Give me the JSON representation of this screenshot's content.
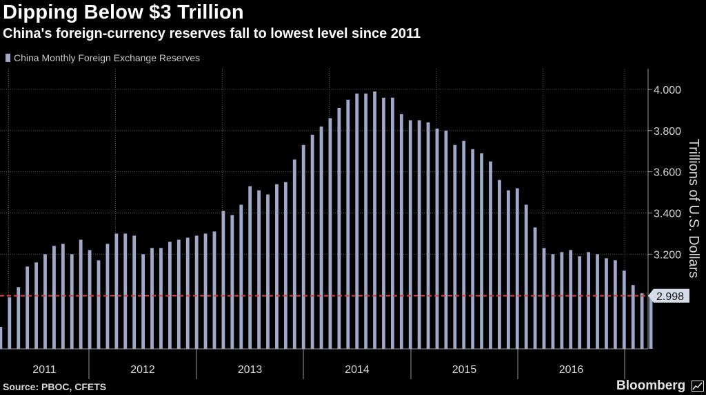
{
  "header": {
    "title": "Dipping Below $3 Trillion",
    "subtitle": "China's foreign-currency reserves fall to lowest level since 2011"
  },
  "footer": {
    "source": "Source: PBOC, CFETS",
    "brand": "Bloomberg"
  },
  "colors": {
    "bar": "#a0aac8",
    "reference_line": "#e8392f",
    "grid": "#5a5a5a",
    "axis_text": "#d8d8d8",
    "background": "#000000"
  },
  "chart_data": {
    "type": "bar",
    "legend": [
      "China Monthly Foreign Exchange Reserves"
    ],
    "legend_position": "top-left",
    "ylabel": "Trillions of U.S. Dollars",
    "ylim": [
      2.74,
      4.1
    ],
    "yticks": [
      "4.000",
      "3.800",
      "3.600",
      "3.400",
      "3.200"
    ],
    "ytick_values": [
      4.0,
      3.8,
      3.6,
      3.4,
      3.2
    ],
    "grid": true,
    "x_groups": [
      "2011",
      "2012",
      "2013",
      "2014",
      "2015",
      "2016"
    ],
    "categories": [
      "2010-12",
      "2011-01",
      "2011-02",
      "2011-03",
      "2011-04",
      "2011-05",
      "2011-06",
      "2011-07",
      "2011-08",
      "2011-09",
      "2011-10",
      "2011-11",
      "2011-12",
      "2012-01",
      "2012-02",
      "2012-03",
      "2012-04",
      "2012-05",
      "2012-06",
      "2012-07",
      "2012-08",
      "2012-09",
      "2012-10",
      "2012-11",
      "2012-12",
      "2013-01",
      "2013-02",
      "2013-03",
      "2013-04",
      "2013-05",
      "2013-06",
      "2013-07",
      "2013-08",
      "2013-09",
      "2013-10",
      "2013-11",
      "2013-12",
      "2014-01",
      "2014-02",
      "2014-03",
      "2014-04",
      "2014-05",
      "2014-06",
      "2014-07",
      "2014-08",
      "2014-09",
      "2014-10",
      "2014-11",
      "2014-12",
      "2015-01",
      "2015-02",
      "2015-03",
      "2015-04",
      "2015-05",
      "2015-06",
      "2015-07",
      "2015-08",
      "2015-09",
      "2015-10",
      "2015-11",
      "2015-12",
      "2016-01",
      "2016-02",
      "2016-03",
      "2016-04",
      "2016-05",
      "2016-06",
      "2016-07",
      "2016-08",
      "2016-09",
      "2016-10",
      "2016-11",
      "2016-12",
      "2017-01"
    ],
    "series": [
      {
        "name": "China Monthly Foreign Exchange Reserves",
        "values": [
          2.847,
          2.99,
          3.04,
          3.14,
          3.16,
          3.2,
          3.24,
          3.25,
          3.2,
          3.27,
          3.22,
          3.17,
          3.25,
          3.3,
          3.3,
          3.29,
          3.2,
          3.23,
          3.23,
          3.26,
          3.27,
          3.28,
          3.29,
          3.3,
          3.31,
          3.41,
          3.39,
          3.44,
          3.53,
          3.51,
          3.49,
          3.54,
          3.55,
          3.66,
          3.73,
          3.78,
          3.82,
          3.86,
          3.91,
          3.95,
          3.98,
          3.98,
          3.99,
          3.96,
          3.96,
          3.88,
          3.85,
          3.85,
          3.84,
          3.81,
          3.8,
          3.73,
          3.75,
          3.71,
          3.69,
          3.65,
          3.56,
          3.51,
          3.52,
          3.44,
          3.33,
          3.23,
          3.2,
          3.21,
          3.22,
          3.19,
          3.21,
          3.2,
          3.18,
          3.17,
          3.12,
          3.05,
          3.01,
          2.998
        ]
      }
    ],
    "reference_line": {
      "value": 2.998,
      "label": "2.998"
    }
  }
}
